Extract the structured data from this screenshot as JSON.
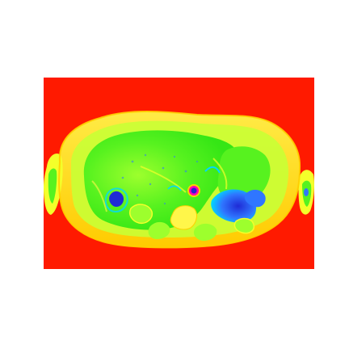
{
  "image": {
    "kind": "pseudocolor-mri-axial-slice",
    "colors": {
      "background": "#ffffff",
      "field": "#ff1a00",
      "fat": "#f4ff2a",
      "tissue": "#57f21f",
      "bright_tissue": "#9dff2d",
      "fluid": "#2f76ff",
      "dark": "#1f2bd6",
      "vessel": "#ff00b4",
      "edge": "#ffd000"
    }
  }
}
